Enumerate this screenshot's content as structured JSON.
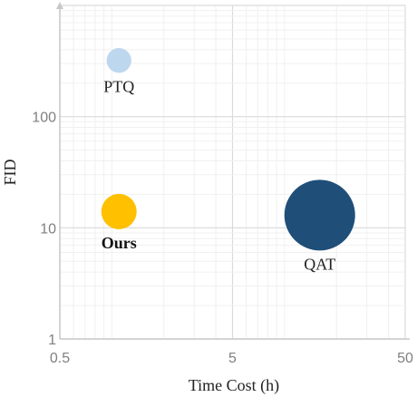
{
  "chart_data": {
    "type": "scatter",
    "xlabel": "Time Cost (h)",
    "ylabel": "FID",
    "x_scale": "log",
    "y_scale": "log",
    "xlim": [
      0.5,
      50
    ],
    "ylim": [
      1,
      1000
    ],
    "x_ticks": [
      {
        "value": 0.5,
        "label": "0.5"
      },
      {
        "value": 5,
        "label": "5"
      },
      {
        "value": 50,
        "label": "50"
      }
    ],
    "y_ticks": [
      {
        "value": 1,
        "label": "1"
      },
      {
        "value": 10,
        "label": "10"
      },
      {
        "value": 100,
        "label": "100"
      }
    ],
    "grid": true,
    "points": [
      {
        "label": "PTQ",
        "x": 1.1,
        "y": 320,
        "size": 0.35,
        "color": "#BDD7EE",
        "bold": false,
        "label_position": "below"
      },
      {
        "label": "Ours",
        "x": 1.1,
        "y": 14,
        "size": 0.5,
        "color": "#FFC000",
        "bold": true,
        "label_position": "below"
      },
      {
        "label": "QAT",
        "x": 16,
        "y": 13,
        "size": 1.0,
        "color": "#1F4E79",
        "bold": false,
        "label_position": "below"
      }
    ]
  }
}
